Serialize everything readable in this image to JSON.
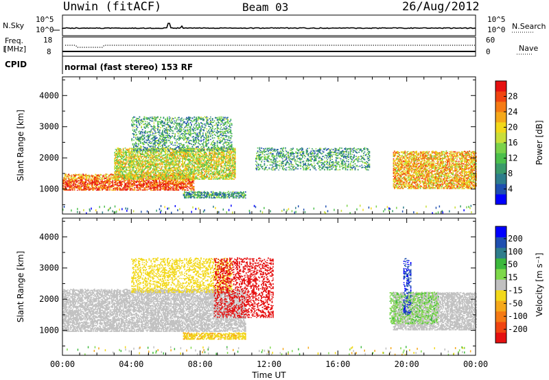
{
  "header": {
    "station": "Unwin (fitACF)",
    "beam": "Beam 03",
    "date": "26/Aug/2012"
  },
  "noise_panel": {
    "left_label": "N.Sky",
    "right_label": "N.Search",
    "left_ticks": [
      "10^5",
      "10^0"
    ],
    "right_ticks": [
      "10^5",
      "10^0"
    ]
  },
  "freq_panel": {
    "left_label_1": "Freq.",
    "left_label_2": "[MHz]",
    "right_label": "Nave",
    "left_ticks": [
      "18",
      "8"
    ],
    "right_ticks": [
      "60",
      "0"
    ]
  },
  "cpid": {
    "label": "CPID",
    "value": "normal (fast stereo) 153 RF"
  },
  "chart_data": [
    {
      "type": "heatmap",
      "title": "",
      "parameter": "Power",
      "ylabel": "Slant Range [km]",
      "xlabel": "",
      "ylim": [
        200,
        4600
      ],
      "xlim_hours": [
        0,
        24
      ],
      "y_ticks": [
        "1000",
        "2000",
        "3000",
        "4000"
      ],
      "colorbar": {
        "label": "Power [dB]",
        "ticks": [
          "4",
          "8",
          "12",
          "16",
          "20",
          "24",
          "28"
        ],
        "range": [
          0,
          32
        ],
        "colors": [
          "#0000ff",
          "#1f4fb0",
          "#2e7d8c",
          "#3a9a6a",
          "#4cbf4c",
          "#7bd24a",
          "#c9de3a",
          "#f2d81a",
          "#f5a81a",
          "#f57a14",
          "#f04410",
          "#e51010"
        ]
      },
      "echo_regions": [
        {
          "name": "near-range band",
          "t_start": 0.0,
          "t_end": 7.6,
          "range_start": 950,
          "range_end": 1450,
          "power_db": 24
        },
        {
          "name": "rising band",
          "t_start": 3.0,
          "t_end": 10.0,
          "range_start": 1300,
          "range_end": 2300,
          "power_db": 18
        },
        {
          "name": "upper echoes",
          "t_start": 4.0,
          "t_end": 9.8,
          "range_start": 2200,
          "range_end": 3300,
          "power_db": 10
        },
        {
          "name": "sub band",
          "t_start": 7.0,
          "t_end": 10.6,
          "range_start": 700,
          "range_end": 900,
          "power_db": 10
        },
        {
          "name": "afternoon patches",
          "t_start": 11.2,
          "t_end": 17.8,
          "range_start": 1600,
          "range_end": 2300,
          "power_db": 10
        },
        {
          "name": "evening band",
          "t_start": 19.2,
          "t_end": 24.0,
          "range_start": 1000,
          "range_end": 2200,
          "power_db": 22
        }
      ]
    },
    {
      "type": "heatmap",
      "title": "",
      "parameter": "Velocity",
      "ylabel": "Slant Range [km]",
      "xlabel": "Time UT",
      "ylim": [
        200,
        4600
      ],
      "xlim_hours": [
        0,
        24
      ],
      "x_ticks": [
        "00:00",
        "04:00",
        "08:00",
        "12:00",
        "16:00",
        "20:00",
        "00:00"
      ],
      "y_ticks": [
        "1000",
        "2000",
        "3000",
        "4000"
      ],
      "colorbar": {
        "label": "Velocity [m s⁻¹]",
        "ticks": [
          "200",
          "100",
          "50",
          "15",
          "-15",
          "-50",
          "-100",
          "-200"
        ],
        "range": [
          -250,
          250
        ],
        "colors": [
          "#e51010",
          "#f04410",
          "#f57a14",
          "#f5a81a",
          "#f2d81a",
          "#c0c0c0",
          "#7ed84a",
          "#3cb83c",
          "#2e7d8c",
          "#1f4fb0",
          "#0000ff"
        ]
      },
      "echo_regions": [
        {
          "name": "ground scatter band",
          "t_start": 0.0,
          "t_end": 10.6,
          "range_start": 950,
          "range_end": 2300,
          "velocity": 0
        },
        {
          "name": "upper echoes",
          "t_start": 4.0,
          "t_end": 9.8,
          "range_start": 2200,
          "range_end": 3300,
          "velocity": -40
        },
        {
          "name": "sub band",
          "t_start": 7.0,
          "t_end": 10.6,
          "range_start": 700,
          "range_end": 900,
          "velocity": -60
        },
        {
          "name": "red streaks",
          "t_start": 8.8,
          "t_end": 12.2,
          "range_start": 1400,
          "range_end": 3300,
          "velocity": -220
        },
        {
          "name": "evening grey band",
          "t_start": 19.2,
          "t_end": 24.0,
          "range_start": 1000,
          "range_end": 2200,
          "velocity": 0
        },
        {
          "name": "evening green streaks",
          "t_start": 19.0,
          "t_end": 21.8,
          "range_start": 1200,
          "range_end": 2200,
          "velocity": 60
        },
        {
          "name": "blue streak",
          "t_start": 19.8,
          "t_end": 20.2,
          "range_start": 1500,
          "range_end": 3300,
          "velocity": 200
        }
      ]
    }
  ]
}
